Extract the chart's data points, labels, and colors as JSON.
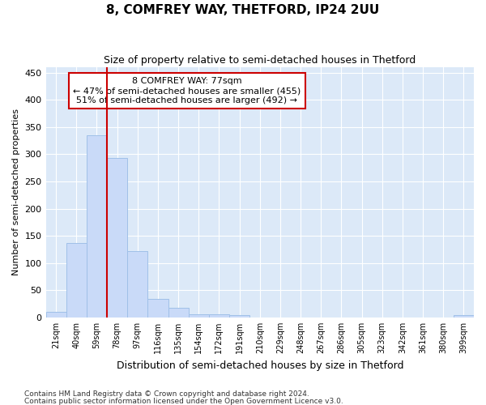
{
  "title": "8, COMFREY WAY, THETFORD, IP24 2UU",
  "subtitle": "Size of property relative to semi-detached houses in Thetford",
  "xlabel": "Distribution of semi-detached houses by size in Thetford",
  "ylabel": "Number of semi-detached properties",
  "footer1": "Contains HM Land Registry data © Crown copyright and database right 2024.",
  "footer2": "Contains public sector information licensed under the Open Government Licence v3.0.",
  "annotation_title": "8 COMFREY WAY: 77sqm",
  "annotation_line1": "← 47% of semi-detached houses are smaller (455)",
  "annotation_line2": "51% of semi-detached houses are larger (492) →",
  "bar_labels": [
    "21sqm",
    "40sqm",
    "59sqm",
    "78sqm",
    "97sqm",
    "116sqm",
    "135sqm",
    "154sqm",
    "172sqm",
    "191sqm",
    "210sqm",
    "229sqm",
    "248sqm",
    "267sqm",
    "286sqm",
    "305sqm",
    "323sqm",
    "342sqm",
    "361sqm",
    "380sqm",
    "399sqm"
  ],
  "bar_values": [
    10,
    137,
    335,
    293,
    122,
    34,
    18,
    6,
    6,
    4,
    0,
    0,
    0,
    0,
    0,
    0,
    0,
    0,
    0,
    0,
    5
  ],
  "bar_color": "#c9daf8",
  "bar_edge_color": "#a0c0e8",
  "vline_color": "#cc0000",
  "vline_x_idx": 3,
  "ylim": [
    0,
    460
  ],
  "yticks": [
    0,
    50,
    100,
    150,
    200,
    250,
    300,
    350,
    400,
    450
  ],
  "grid_color": "#ffffff",
  "bg_color": "#dce9f8",
  "fig_bg_color": "#ffffff",
  "annotation_box_edge": "#cc0000",
  "annotation_box_face": "#ffffff"
}
